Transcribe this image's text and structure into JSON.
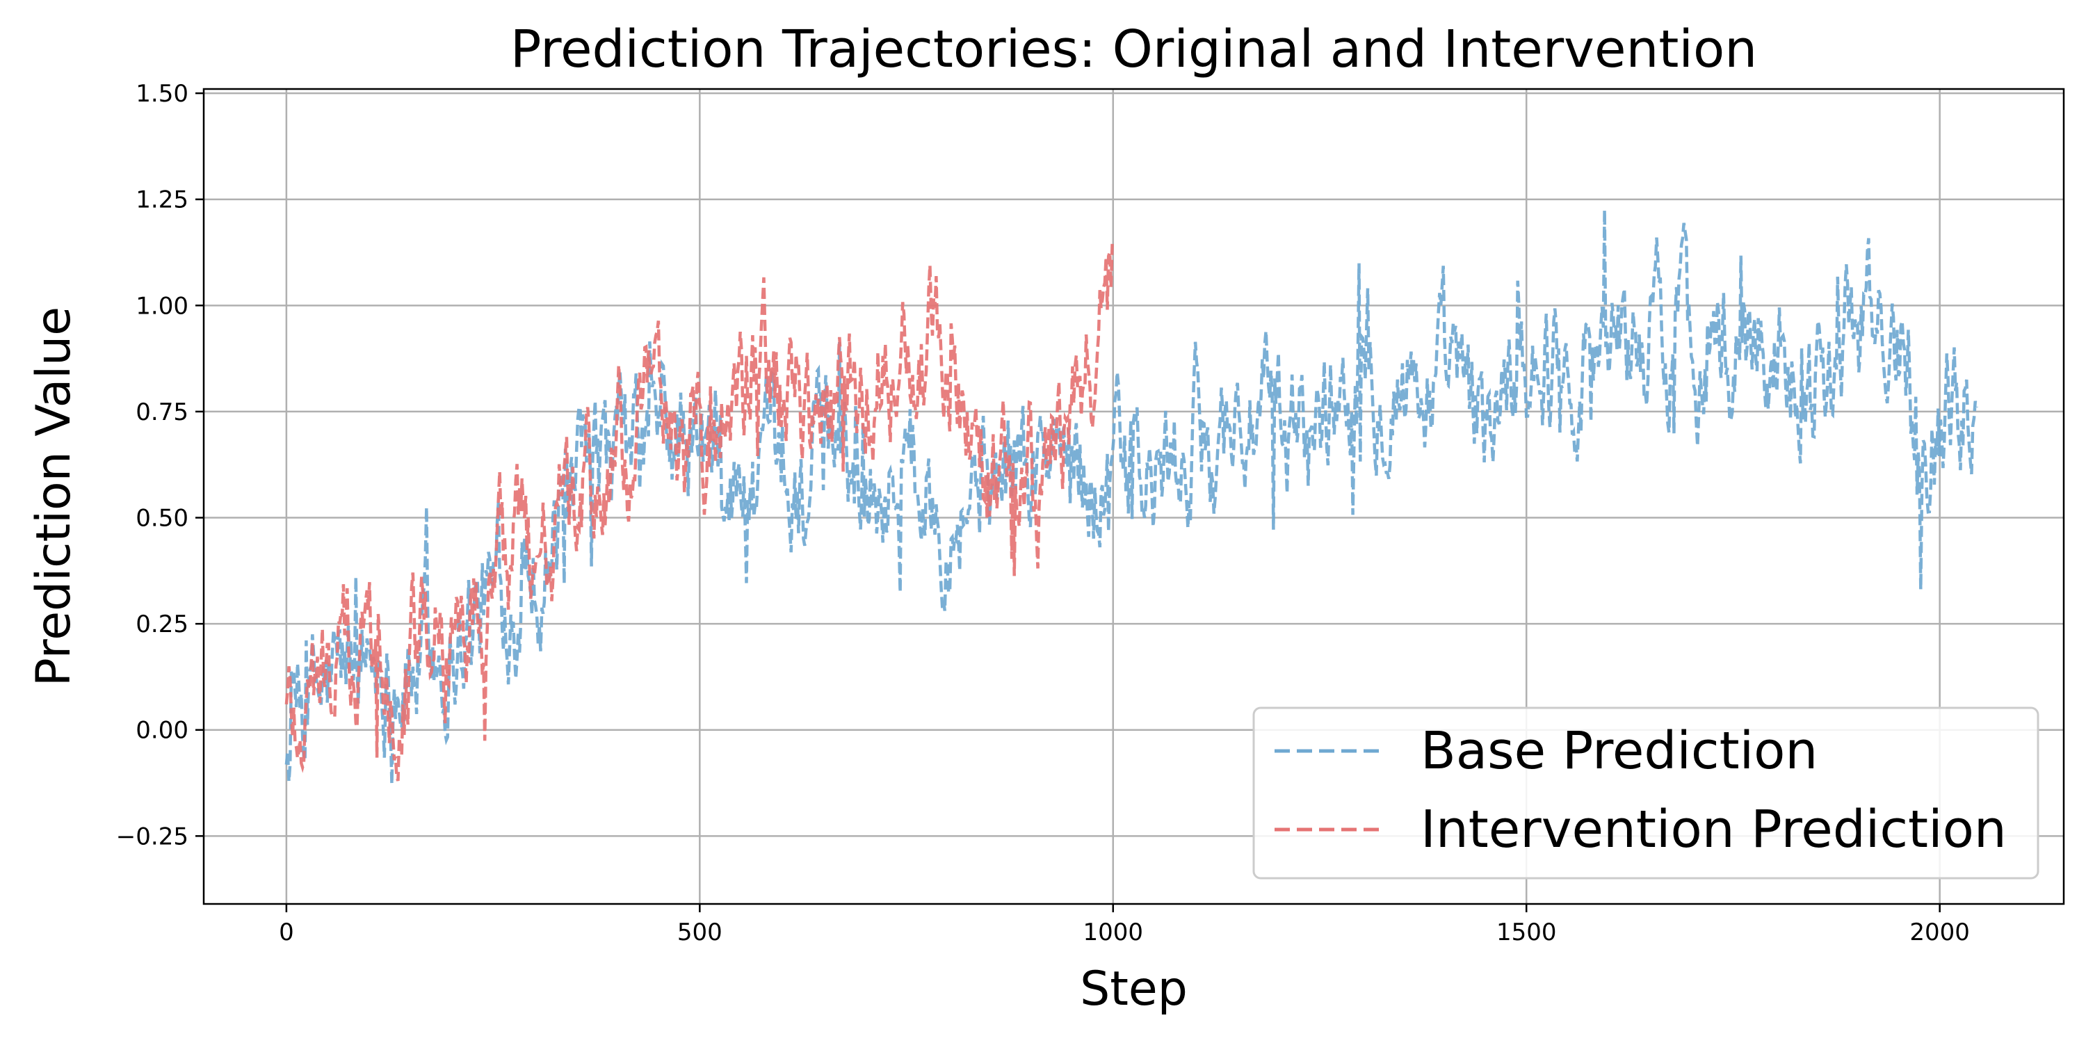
{
  "chart_data": {
    "type": "line",
    "title": "Prediction Trajectories: Original and Intervention",
    "xlabel": "Step",
    "ylabel": "Prediction Value",
    "xlim": [
      -100,
      2150
    ],
    "ylim": [
      -0.41,
      1.51
    ],
    "xticks": [
      0,
      500,
      1000,
      1500,
      2000
    ],
    "xtick_labels": [
      "0",
      "500",
      "1000",
      "1500",
      "2000"
    ],
    "yticks": [
      -0.25,
      0.0,
      0.25,
      0.5,
      0.75,
      1.0,
      1.25,
      1.5
    ],
    "ytick_labels": [
      "−0.25",
      "0.00",
      "0.25",
      "0.50",
      "0.75",
      "1.00",
      "1.25",
      "1.50"
    ],
    "grid": true,
    "legend_position": "lower-right",
    "series": [
      {
        "name": "Base Prediction",
        "color": "#6fa8d1",
        "linestyle": "dashed",
        "x": [
          0,
          50,
          100,
          150,
          200,
          250,
          300,
          350,
          400,
          450,
          500,
          550,
          600,
          650,
          700,
          750,
          800,
          850,
          900,
          950,
          1000,
          1050,
          1100,
          1150,
          1200,
          1250,
          1300,
          1350,
          1400,
          1450,
          1500,
          1550,
          1600,
          1650,
          1700,
          1750,
          1800,
          1850,
          1900,
          1950,
          2000,
          2045
        ],
        "values": [
          0.0,
          0.08,
          0.18,
          0.15,
          0.22,
          0.3,
          0.42,
          0.5,
          0.6,
          0.7,
          0.62,
          0.55,
          0.52,
          0.65,
          0.62,
          0.6,
          0.58,
          0.6,
          0.62,
          0.63,
          0.62,
          0.55,
          0.68,
          0.75,
          0.68,
          0.75,
          0.88,
          0.85,
          0.8,
          0.72,
          0.9,
          0.88,
          0.92,
          0.93,
          0.95,
          0.9,
          0.92,
          0.88,
          0.95,
          0.92,
          0.75,
          0.8
        ]
      },
      {
        "name": "Intervention Prediction",
        "color": "#e57373",
        "linestyle": "dashed",
        "x": [
          0,
          50,
          100,
          150,
          200,
          250,
          300,
          350,
          400,
          450,
          500,
          550,
          600,
          650,
          700,
          750,
          800,
          850,
          900,
          950,
          1000
        ],
        "values": [
          0.05,
          0.12,
          0.2,
          0.22,
          0.25,
          0.32,
          0.45,
          0.52,
          0.62,
          0.72,
          0.68,
          0.78,
          0.82,
          0.7,
          0.85,
          0.92,
          0.9,
          0.6,
          0.58,
          0.7,
          1.1
        ]
      }
    ]
  }
}
